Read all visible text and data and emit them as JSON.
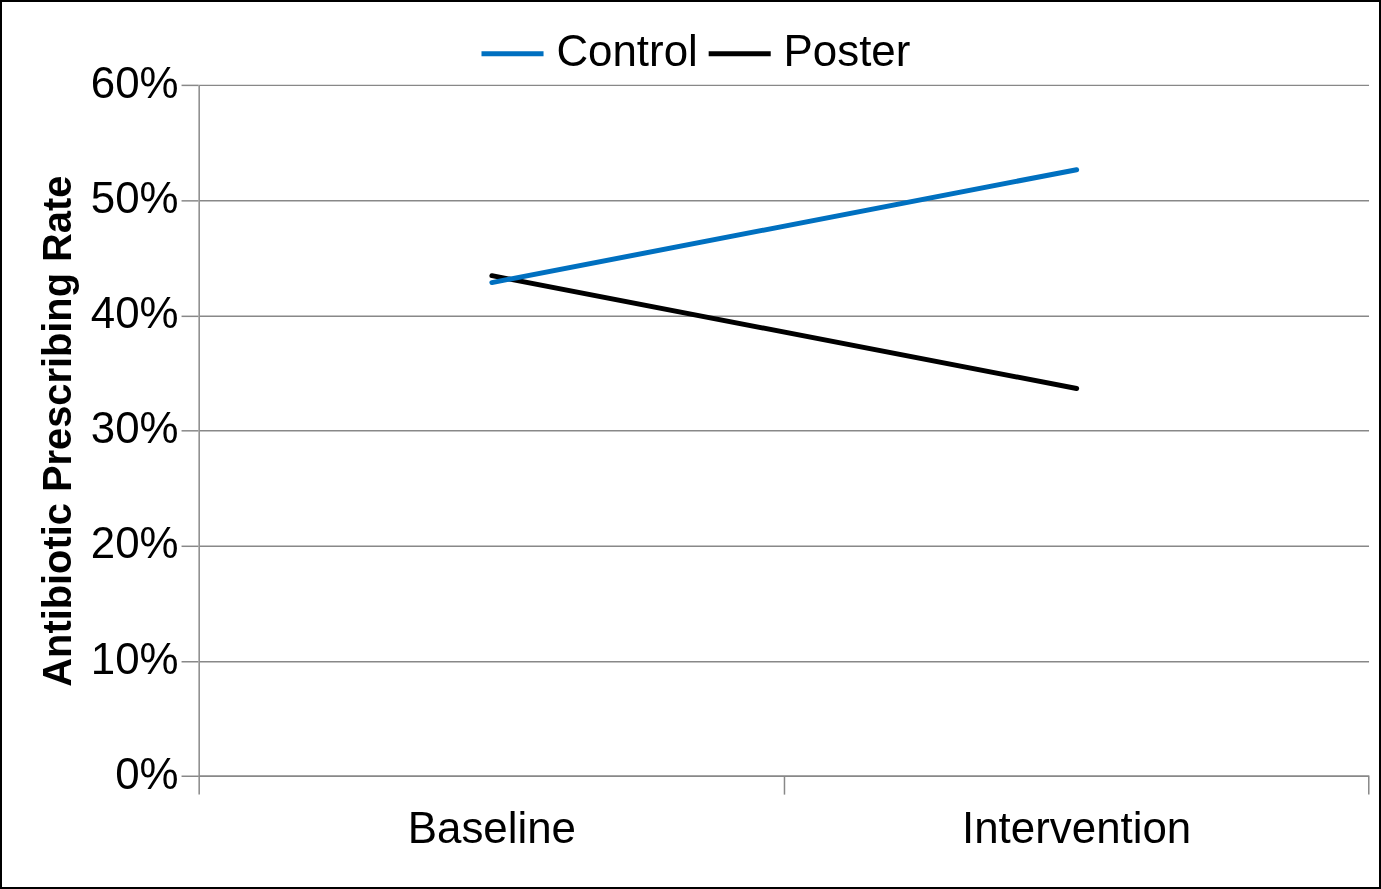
{
  "chart_data": {
    "type": "line",
    "ylabel": "Antibiotic Prescribing Rate",
    "categories": [
      "Baseline",
      "Intervention"
    ],
    "series": [
      {
        "name": "Control",
        "color": "#0070c0",
        "values": [
          42.9,
          52.7
        ]
      },
      {
        "name": "Poster",
        "color": "#000000",
        "values": [
          43.5,
          33.7
        ]
      }
    ],
    "ylim": [
      0,
      60
    ],
    "yticks": [
      {
        "value": 0,
        "label": "0%"
      },
      {
        "value": 10,
        "label": "10%"
      },
      {
        "value": 20,
        "label": "20%"
      },
      {
        "value": 30,
        "label": "30%"
      },
      {
        "value": 40,
        "label": "40%"
      },
      {
        "value": 50,
        "label": "50%"
      },
      {
        "value": 60,
        "label": "60%"
      }
    ],
    "grid": "y",
    "legend": "top",
    "marker": "none",
    "line_style": "solid"
  }
}
